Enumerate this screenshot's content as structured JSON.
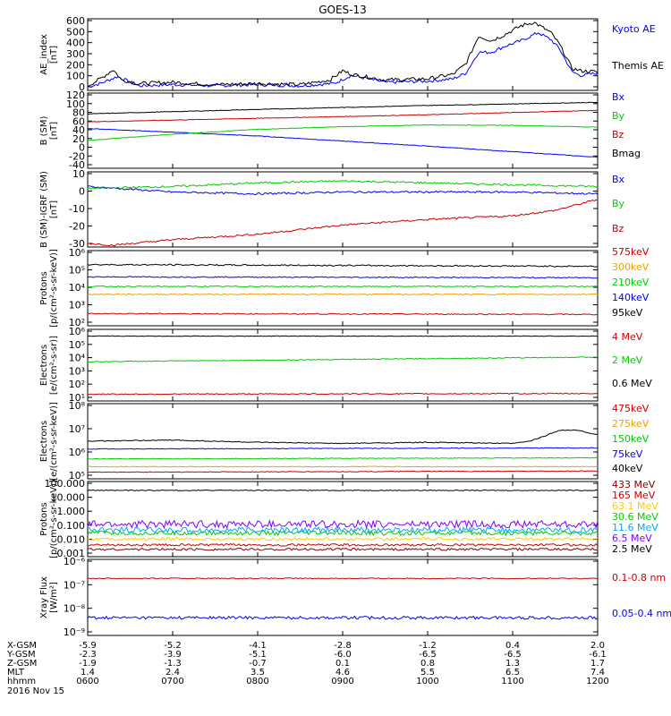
{
  "title": "GOES-13",
  "colors": {
    "black": "#000000",
    "blue": "#0000ff",
    "red": "#cc0000",
    "green": "#00cc00",
    "orange": "#f0a000",
    "gold": "#ffcc00",
    "cyan": "#00aaff",
    "purple": "#8000ff",
    "brown": "#880000"
  },
  "chart_data": [
    {
      "type": "line",
      "ylabel": [
        "AE_index",
        "[nT]"
      ],
      "yticks": [
        "600",
        "500",
        "400",
        "300",
        "200",
        "100",
        "0"
      ],
      "ylim": [
        0,
        620
      ],
      "series": [
        {
          "name": "Kyoto AE",
          "color": "#0000ff",
          "x": [
            6.0,
            6.15,
            6.35,
            6.6,
            7.0,
            7.5,
            8.0,
            8.5,
            8.9,
            9.1,
            9.5,
            10.0,
            10.3,
            10.45,
            10.6,
            10.75,
            10.9,
            11.1,
            11.3,
            11.45,
            11.55,
            11.7,
            11.8,
            12.0
          ],
          "y": [
            30,
            60,
            120,
            40,
            50,
            40,
            50,
            40,
            60,
            130,
            70,
            80,
            100,
            150,
            330,
            330,
            380,
            430,
            500,
            440,
            360,
            160,
            130,
            150
          ]
        },
        {
          "name": "Themis AE",
          "color": "#000000",
          "x": [
            6.0,
            6.15,
            6.3,
            6.4,
            6.6,
            7.0,
            7.5,
            8.0,
            8.5,
            8.85,
            9.0,
            9.1,
            9.5,
            10.0,
            10.3,
            10.45,
            10.6,
            10.75,
            10.9,
            11.1,
            11.25,
            11.45,
            11.55,
            11.7,
            11.8,
            12.0
          ],
          "y": [
            40,
            100,
            180,
            90,
            60,
            70,
            50,
            60,
            50,
            90,
            170,
            140,
            90,
            100,
            140,
            230,
            470,
            430,
            480,
            560,
            590,
            500,
            400,
            190,
            170,
            160
          ]
        }
      ]
    },
    {
      "type": "line",
      "ylabel": [
        "B (SM)",
        "[nT]"
      ],
      "yticks": [
        "120",
        "100",
        "80",
        "60",
        "40",
        "20",
        "0",
        "-20",
        "-40"
      ],
      "ylim": [
        -45,
        125
      ],
      "series": [
        {
          "name": "Bx",
          "color": "#0000ff",
          "x": [
            6.0,
            8.0,
            10.0,
            12.0
          ],
          "y": [
            45,
            28,
            5,
            -20
          ]
        },
        {
          "name": "By",
          "color": "#00cc00",
          "x": [
            6.0,
            7.0,
            8.0,
            9.0,
            10.0,
            11.0,
            12.0
          ],
          "y": [
            18,
            32,
            43,
            49,
            53,
            52,
            48
          ]
        },
        {
          "name": "Bz",
          "color": "#cc0000",
          "x": [
            6.0,
            8.0,
            10.0,
            12.0
          ],
          "y": [
            60,
            68,
            76,
            86
          ]
        },
        {
          "name": "Bmag",
          "color": "#000000",
          "x": [
            6.0,
            8.0,
            10.0,
            12.0
          ],
          "y": [
            78,
            88,
            97,
            104
          ]
        }
      ]
    },
    {
      "type": "line",
      "ylabel": [
        "B (SM)-IGRF (SM)",
        "[nT]"
      ],
      "yticks": [
        "10",
        "0",
        "-10",
        "-20",
        "-30"
      ],
      "ylim": [
        -31,
        10
      ],
      "series": [
        {
          "name": "Bx",
          "color": "#0000ff",
          "x": [
            6.0,
            7.0,
            8.0,
            9.0,
            10.0,
            11.0,
            12.0
          ],
          "y": [
            2,
            -1,
            -2,
            -1,
            -1,
            -1,
            -2
          ]
        },
        {
          "name": "By",
          "color": "#00cc00",
          "x": [
            6.0,
            7.0,
            8.0,
            9.0,
            10.0,
            11.0,
            12.0
          ],
          "y": [
            1,
            2,
            4,
            5,
            4,
            3,
            2
          ]
        },
        {
          "name": "Bz",
          "color": "#cc0000",
          "x": [
            6.0,
            6.3,
            7.0,
            8.0,
            9.0,
            10.0,
            11.0,
            11.5,
            12.0
          ],
          "y": [
            -29,
            -30,
            -27,
            -24,
            -19,
            -16,
            -14,
            -11,
            -5
          ]
        }
      ]
    },
    {
      "type": "line",
      "log": true,
      "ylabel": [
        "Protons",
        "[p/(cm²-s-sr-keV)]"
      ],
      "yticks": [
        "10⁶",
        "10⁵",
        "10⁴",
        "10³",
        "10²"
      ],
      "ylim_exp": [
        1.7,
        6.0
      ],
      "series": [
        {
          "name": "575keV",
          "color": "#cc0000",
          "x": [
            6.0,
            12.0
          ],
          "y": [
            2.4,
            2.35
          ]
        },
        {
          "name": "300keV",
          "color": "#f0a000",
          "x": [
            6.0,
            12.0
          ],
          "y": [
            3.5,
            3.5
          ]
        },
        {
          "name": "210keV",
          "color": "#00cc00",
          "x": [
            6.0,
            12.0
          ],
          "y": [
            3.95,
            3.95
          ]
        },
        {
          "name": "140keV",
          "color": "#0000ff",
          "x": [
            6.0,
            12.0
          ],
          "y": [
            4.5,
            4.45
          ]
        },
        {
          "name": "95keV",
          "color": "#000000",
          "x": [
            6.0,
            12.0
          ],
          "y": [
            5.2,
            5.1
          ]
        }
      ]
    },
    {
      "type": "line",
      "log": true,
      "ylabel": [
        "Electrons",
        "[e/(cm²-s-sr)]"
      ],
      "yticks": [
        "10⁶",
        "10⁵",
        "10⁴",
        "10³",
        "10²",
        "10¹"
      ],
      "ylim_exp": [
        0.7,
        6.0
      ],
      "series": [
        {
          "name": "4 MeV",
          "color": "#cc0000",
          "x": [
            6.0,
            12.0
          ],
          "y": [
            1.2,
            1.25
          ]
        },
        {
          "name": "2 MeV",
          "color": "#00cc00",
          "x": [
            6.0,
            12.0
          ],
          "y": [
            3.6,
            3.95
          ]
        },
        {
          "name": "0.6 MeV",
          "color": "#000000",
          "x": [
            6.0,
            12.0
          ],
          "y": [
            5.5,
            5.5
          ]
        }
      ]
    },
    {
      "type": "line",
      "log": true,
      "ylabel": [
        "Electrons",
        "[e/(cm²-s-sr-keV)]"
      ],
      "yticks": [
        "10⁸",
        "10⁷",
        "10⁶",
        "10⁵"
      ],
      "ylim_exp": [
        4.6,
        8.0
      ],
      "series": [
        {
          "name": "475keV",
          "color": "#cc0000",
          "x": [
            6.0,
            12.0
          ],
          "y": [
            4.9,
            4.95
          ]
        },
        {
          "name": "275keV",
          "color": "#f0a000",
          "x": [
            6.0,
            12.0
          ],
          "y": [
            5.15,
            5.15
          ]
        },
        {
          "name": "150keV",
          "color": "#00cc00",
          "x": [
            6.0,
            12.0
          ],
          "y": [
            5.5,
            5.55
          ]
        },
        {
          "name": "75keV",
          "color": "#0000ff",
          "x": [
            6.0,
            12.0
          ],
          "y": [
            5.95,
            6.0
          ]
        },
        {
          "name": "40keV",
          "color": "#000000",
          "x": [
            6.0,
            7.0,
            8.0,
            9.0,
            10.0,
            11.0,
            11.2,
            11.35,
            11.55,
            11.75,
            12.0
          ],
          "y": [
            6.3,
            6.35,
            6.25,
            6.2,
            6.25,
            6.2,
            6.3,
            6.5,
            6.8,
            6.8,
            6.6
          ]
        }
      ]
    },
    {
      "type": "line",
      "log": true,
      "ylabel": [
        "Protons",
        "[p/(cm²-s-sr-keV)]"
      ],
      "yticks": [
        "100.000",
        "10.000",
        "1.000",
        "0.100",
        "0.010",
        "0.001"
      ],
      "ylim_exp": [
        -3.1,
        2.0
      ],
      "series": [
        {
          "name": "433 MeV",
          "color": "#880000",
          "x": [
            6.0,
            12.0
          ],
          "y": [
            -2.6,
            -2.6
          ]
        },
        {
          "name": "165 MeV",
          "color": "#cc0000",
          "x": [
            6.0,
            12.0
          ],
          "y": [
            -2.3,
            -2.3
          ]
        },
        {
          "name": "63.1 MeV",
          "color": "#ffcc00",
          "x": [
            6.0,
            12.0
          ],
          "y": [
            -1.9,
            -1.9
          ]
        },
        {
          "name": "30.6 MeV",
          "color": "#00cc00",
          "x": [
            6.0,
            12.0
          ],
          "y": [
            -1.5,
            -1.5
          ]
        },
        {
          "name": "11.6 MeV",
          "color": "#00aaff",
          "x": [
            6.0,
            12.0
          ],
          "y": [
            -1.3,
            -1.3
          ]
        },
        {
          "name": "6.5 MeV",
          "color": "#8000ff",
          "x": [
            6.0,
            12.0
          ],
          "y": [
            -0.9,
            -0.9
          ]
        },
        {
          "name": "2.5 MeV",
          "color": "#000000",
          "x": [
            6.0,
            12.0
          ],
          "y": [
            1.4,
            1.4
          ]
        }
      ]
    },
    {
      "type": "line",
      "log": true,
      "ylabel": [
        "Xray Flux",
        "[W/m²]"
      ],
      "yticks": [
        "10⁻⁶",
        "10⁻⁷",
        "10⁻⁸",
        "10⁻⁹"
      ],
      "ylim_exp": [
        -9.0,
        -6.0
      ],
      "series": [
        {
          "name": "0.1-0.8 nm",
          "color": "#cc0000",
          "x": [
            6.0,
            12.0
          ],
          "y": [
            -6.75,
            -6.75
          ]
        },
        {
          "name": "0.05-0.4 nm",
          "color": "#0000ff",
          "x": [
            6.0,
            12.0
          ],
          "y": [
            -8.3,
            -8.3
          ]
        }
      ]
    }
  ],
  "x_axis": {
    "ticks": [
      6,
      7,
      8,
      9,
      10,
      11,
      12
    ],
    "rows": [
      {
        "label": "X-GSM",
        "values": [
          "-5.9",
          "-5.2",
          "-4.1",
          "-2.8",
          "-1.2",
          "0.4",
          "2.0"
        ]
      },
      {
        "label": "Y-GSM",
        "values": [
          "-2.3",
          "-3.9",
          "-5.1",
          "-6.0",
          "-6.5",
          "-6.5",
          "-6.1"
        ]
      },
      {
        "label": "Z-GSM",
        "values": [
          "-1.9",
          "-1.3",
          "-0.7",
          "0.1",
          "0.8",
          "1.3",
          "1.7"
        ]
      },
      {
        "label": "MLT",
        "values": [
          "1.4",
          "2.4",
          "3.5",
          "4.6",
          "5.5",
          "6.5",
          "7.4"
        ]
      },
      {
        "label": "hhmm",
        "values": [
          "0600",
          "0700",
          "0800",
          "0900",
          "1000",
          "1100",
          "1200"
        ]
      }
    ],
    "date": "2016 Nov 15"
  }
}
